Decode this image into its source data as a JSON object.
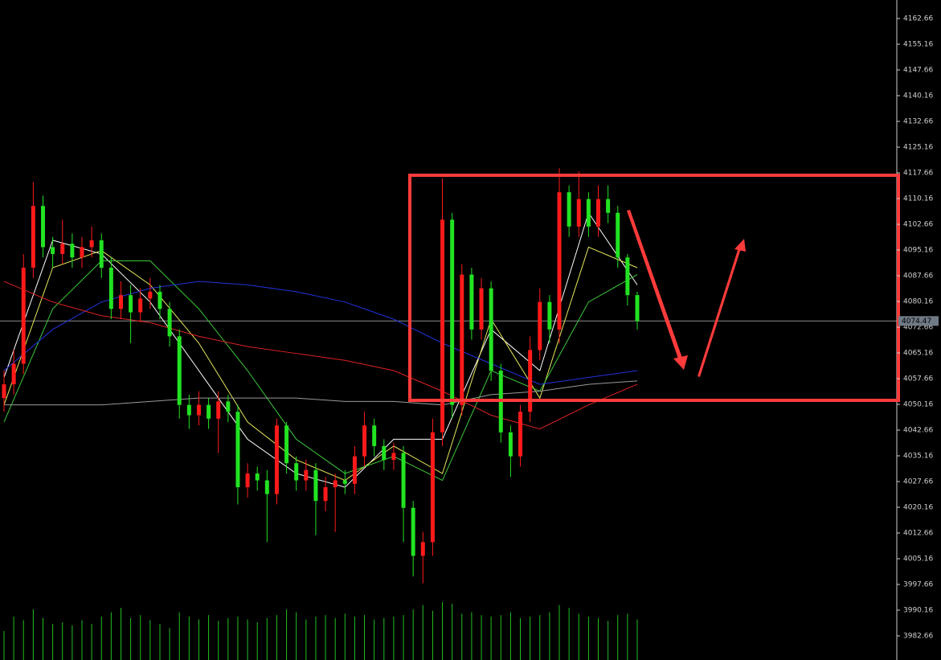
{
  "chart_data": {
    "type": "candlestick",
    "ylim": [
      3975.63,
      4168.05
    ],
    "yticks": [
      4162.66,
      4155.16,
      4147.66,
      4140.16,
      4132.66,
      4125.16,
      4117.66,
      4110.16,
      4102.66,
      4095.16,
      4087.66,
      4080.16,
      4072.66,
      4065.16,
      4057.66,
      4050.16,
      4042.66,
      4035.16,
      4027.66,
      4020.16,
      4012.66,
      4005.16,
      3997.66,
      3990.16,
      3982.66
    ],
    "up_color": "#ff1a1a",
    "down_color": "#22e322",
    "open": [
      4052,
      4056,
      4062,
      4090,
      4108,
      4096,
      4094,
      4097,
      4093,
      4096,
      4098,
      4090,
      4078,
      4082,
      4077,
      4081,
      4083,
      4078,
      4070,
      4050,
      4047,
      4050,
      4046,
      4051,
      4048,
      4026,
      4030,
      4028,
      4024,
      4044,
      4033,
      4028,
      4031,
      4022,
      4026,
      4028,
      4027,
      4035,
      4044,
      4038,
      4034,
      4036,
      4020,
      4006,
      4010,
      4042,
      4104,
      4050,
      4088,
      4072,
      4084,
      4060,
      4042,
      4035,
      4048,
      4066,
      4080,
      4072,
      4112,
      4102,
      4110,
      4102,
      4110,
      4106,
      4093,
      4082
    ],
    "high": [
      4060,
      4066,
      4094,
      4115,
      4111,
      4099,
      4104,
      4100,
      4099,
      4102,
      4100,
      4093,
      4086,
      4085,
      4084,
      4087,
      4085,
      4080,
      4072,
      4053,
      4054,
      4052,
      4054,
      4053,
      4050,
      4033,
      4032,
      4031,
      4046,
      4045,
      4035,
      4034,
      4033,
      4029,
      4030,
      4031,
      4038,
      4048,
      4046,
      4040,
      4039,
      4038,
      4022,
      4013,
      4046,
      4116,
      4106,
      4091,
      4090,
      4087,
      4086,
      4062,
      4044,
      4050,
      4070,
      4084,
      4082,
      4119,
      4114,
      4118,
      4112,
      4114,
      4114,
      4108,
      4094,
      4083
    ],
    "low": [
      4048,
      4053,
      4059,
      4087,
      4093,
      4090,
      4091,
      4090,
      4090,
      4093,
      4087,
      4075,
      4075,
      4068,
      4074,
      4078,
      4075,
      4067,
      4046,
      4043,
      4044,
      4043,
      4036,
      4045,
      4021,
      4023,
      4025,
      4010,
      4021,
      4030,
      4025,
      4025,
      4012,
      4019,
      4013,
      4024,
      4024,
      4032,
      4035,
      4031,
      4031,
      4010,
      4000,
      3998,
      4006,
      4038,
      4046,
      4047,
      4069,
      4069,
      4057,
      4039,
      4029,
      4032,
      4045,
      4063,
      4068,
      4068,
      4099,
      4099,
      4099,
      4099,
      4103,
      4090,
      4079,
      4072
    ],
    "close": [
      4056,
      4062,
      4090,
      4108,
      4096,
      4094,
      4097,
      4093,
      4096,
      4098,
      4090,
      4078,
      4082,
      4077,
      4081,
      4083,
      4078,
      4070,
      4050,
      4047,
      4050,
      4046,
      4051,
      4048,
      4026,
      4030,
      4028,
      4024,
      4044,
      4033,
      4028,
      4031,
      4022,
      4026,
      4028,
      4027,
      4035,
      4044,
      4038,
      4034,
      4036,
      4020,
      4006,
      4010,
      4042,
      4104,
      4050,
      4088,
      4072,
      4084,
      4060,
      4042,
      4035,
      4048,
      4066,
      4080,
      4072,
      4112,
      4102,
      4110,
      4102,
      4110,
      4106,
      4093,
      4082,
      4074.47
    ],
    "volume": [
      40,
      60,
      55,
      70,
      58,
      50,
      52,
      48,
      55,
      50,
      60,
      66,
      72,
      58,
      62,
      55,
      50,
      44,
      66,
      60,
      56,
      62,
      54,
      58,
      60,
      56,
      52,
      58,
      62,
      70,
      66,
      56,
      60,
      62,
      58,
      64,
      60,
      62,
      56,
      58,
      60,
      62,
      70,
      76,
      68,
      80,
      78,
      64,
      66,
      62,
      60,
      62,
      66,
      58,
      60,
      62,
      66,
      76,
      72,
      64,
      60,
      58,
      54,
      62,
      64,
      56
    ],
    "volume_color": "#22c022",
    "volume_ylim": [
      0,
      100
    ],
    "moving_averages": [
      {
        "color": "#ffffff",
        "x": [
          0,
          5,
          10,
          15,
          20,
          25,
          30,
          35,
          40,
          45,
          50,
          55,
          60,
          65
        ],
        "values": [
          4058,
          4098,
          4094,
          4080,
          4060,
          4040,
          4030,
          4026,
          4040,
          4040,
          4072,
          4060,
          4106,
          4085
        ]
      },
      {
        "color": "#e6e65a",
        "x": [
          0,
          5,
          10,
          15,
          20,
          25,
          30,
          35,
          40,
          45,
          50,
          55,
          60,
          65
        ],
        "values": [
          4050,
          4090,
          4095,
          4085,
          4068,
          4045,
          4034,
          4028,
          4038,
          4030,
          4075,
          4052,
          4096,
          4090
        ]
      },
      {
        "color": "#3cc83c",
        "x": [
          0,
          5,
          10,
          15,
          20,
          25,
          30,
          35,
          40,
          45,
          50,
          55,
          60,
          65
        ],
        "values": [
          4045,
          4078,
          4092,
          4092,
          4078,
          4060,
          4040,
          4030,
          4035,
          4028,
          4060,
          4054,
          4080,
          4088
        ]
      },
      {
        "color": "#2233dd",
        "x": [
          0,
          5,
          10,
          15,
          20,
          25,
          30,
          35,
          40,
          45,
          50,
          55,
          60,
          65
        ],
        "values": [
          4060,
          4072,
          4080,
          4084,
          4086,
          4085,
          4083,
          4080,
          4075,
          4068,
          4062,
          4056,
          4058,
          4060
        ]
      },
      {
        "color": "#dd2222",
        "x": [
          0,
          5,
          10,
          15,
          20,
          25,
          30,
          35,
          40,
          45,
          50,
          55,
          60,
          65
        ],
        "values": [
          4086,
          4080,
          4076,
          4074,
          4070,
          4067,
          4065,
          4063,
          4060,
          4054,
          4047,
          4043,
          4050,
          4056
        ]
      },
      {
        "color": "#9a9a9a",
        "x": [
          0,
          5,
          10,
          15,
          20,
          25,
          30,
          35,
          40,
          45,
          50,
          55,
          60,
          65
        ],
        "values": [
          4050,
          4050,
          4050,
          4051,
          4052,
          4052,
          4052,
          4051,
          4051,
          4050,
          4053,
          4054,
          4056,
          4057
        ]
      }
    ],
    "current_price": 4074.47
  }
}
